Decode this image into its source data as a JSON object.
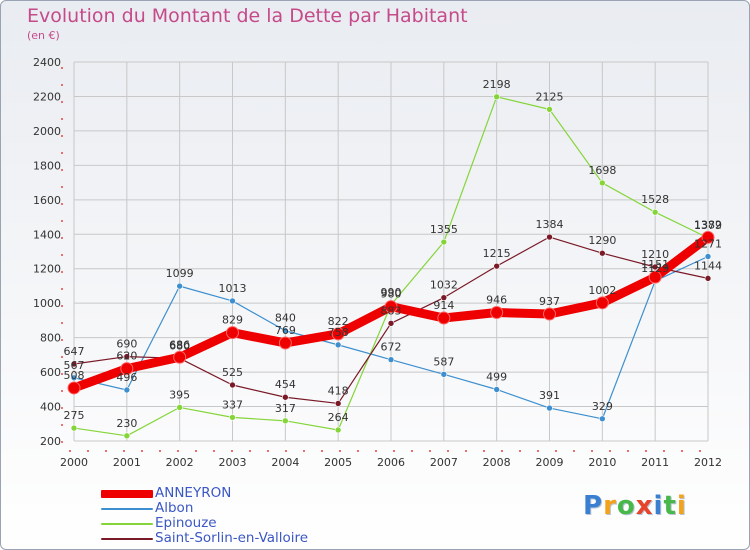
{
  "header": {
    "title": "Evolution du Montant de la Dette par Habitant",
    "unit": "(en €)"
  },
  "logo": {
    "text": "Proxiti"
  },
  "colors": {
    "title": "#c54a8a",
    "axis": "#e21a1a",
    "grid": "#c8c8c8",
    "legend_text": "#3b57c4"
  },
  "chart_data": {
    "type": "line",
    "title": "Evolution du Montant de la Dette par Habitant",
    "subtitle": "(en €)",
    "x": [
      "2000",
      "2001",
      "2002",
      "2003",
      "2004",
      "2005",
      "2006",
      "2007",
      "2008",
      "2009",
      "2010",
      "2011",
      "2012"
    ],
    "ylim": [
      200,
      2400
    ],
    "yticks": [
      200,
      400,
      600,
      800,
      1000,
      1200,
      1400,
      1600,
      1800,
      2000,
      2200,
      2400
    ],
    "grid": true,
    "legend_position": "bottom-left",
    "series": [
      {
        "name": "ANNEYRON",
        "color": "#ee0000",
        "width": 9,
        "values": [
          508,
          620,
          686,
          829,
          769,
          822,
          980,
          914,
          946,
          937,
          1002,
          1151,
          1382
        ]
      },
      {
        "name": "Albon",
        "color": "#3d8fcf",
        "width": 1.2,
        "values": [
          567,
          496,
          1099,
          1013,
          840,
          758,
          672,
          587,
          499,
          391,
          329,
          1129,
          1271
        ]
      },
      {
        "name": "Epinouze",
        "color": "#85d53a",
        "width": 1.2,
        "values": [
          275,
          230,
          395,
          337,
          317,
          264,
          990,
          1355,
          2198,
          2125,
          1698,
          1528,
          1379
        ]
      },
      {
        "name": "Saint-Sorlin-en-Valloire",
        "color": "#7a1a28",
        "width": 1.2,
        "values": [
          647,
          690,
          680,
          525,
          454,
          418,
          883,
          1032,
          1215,
          1384,
          1290,
          1210,
          1144
        ]
      }
    ]
  }
}
